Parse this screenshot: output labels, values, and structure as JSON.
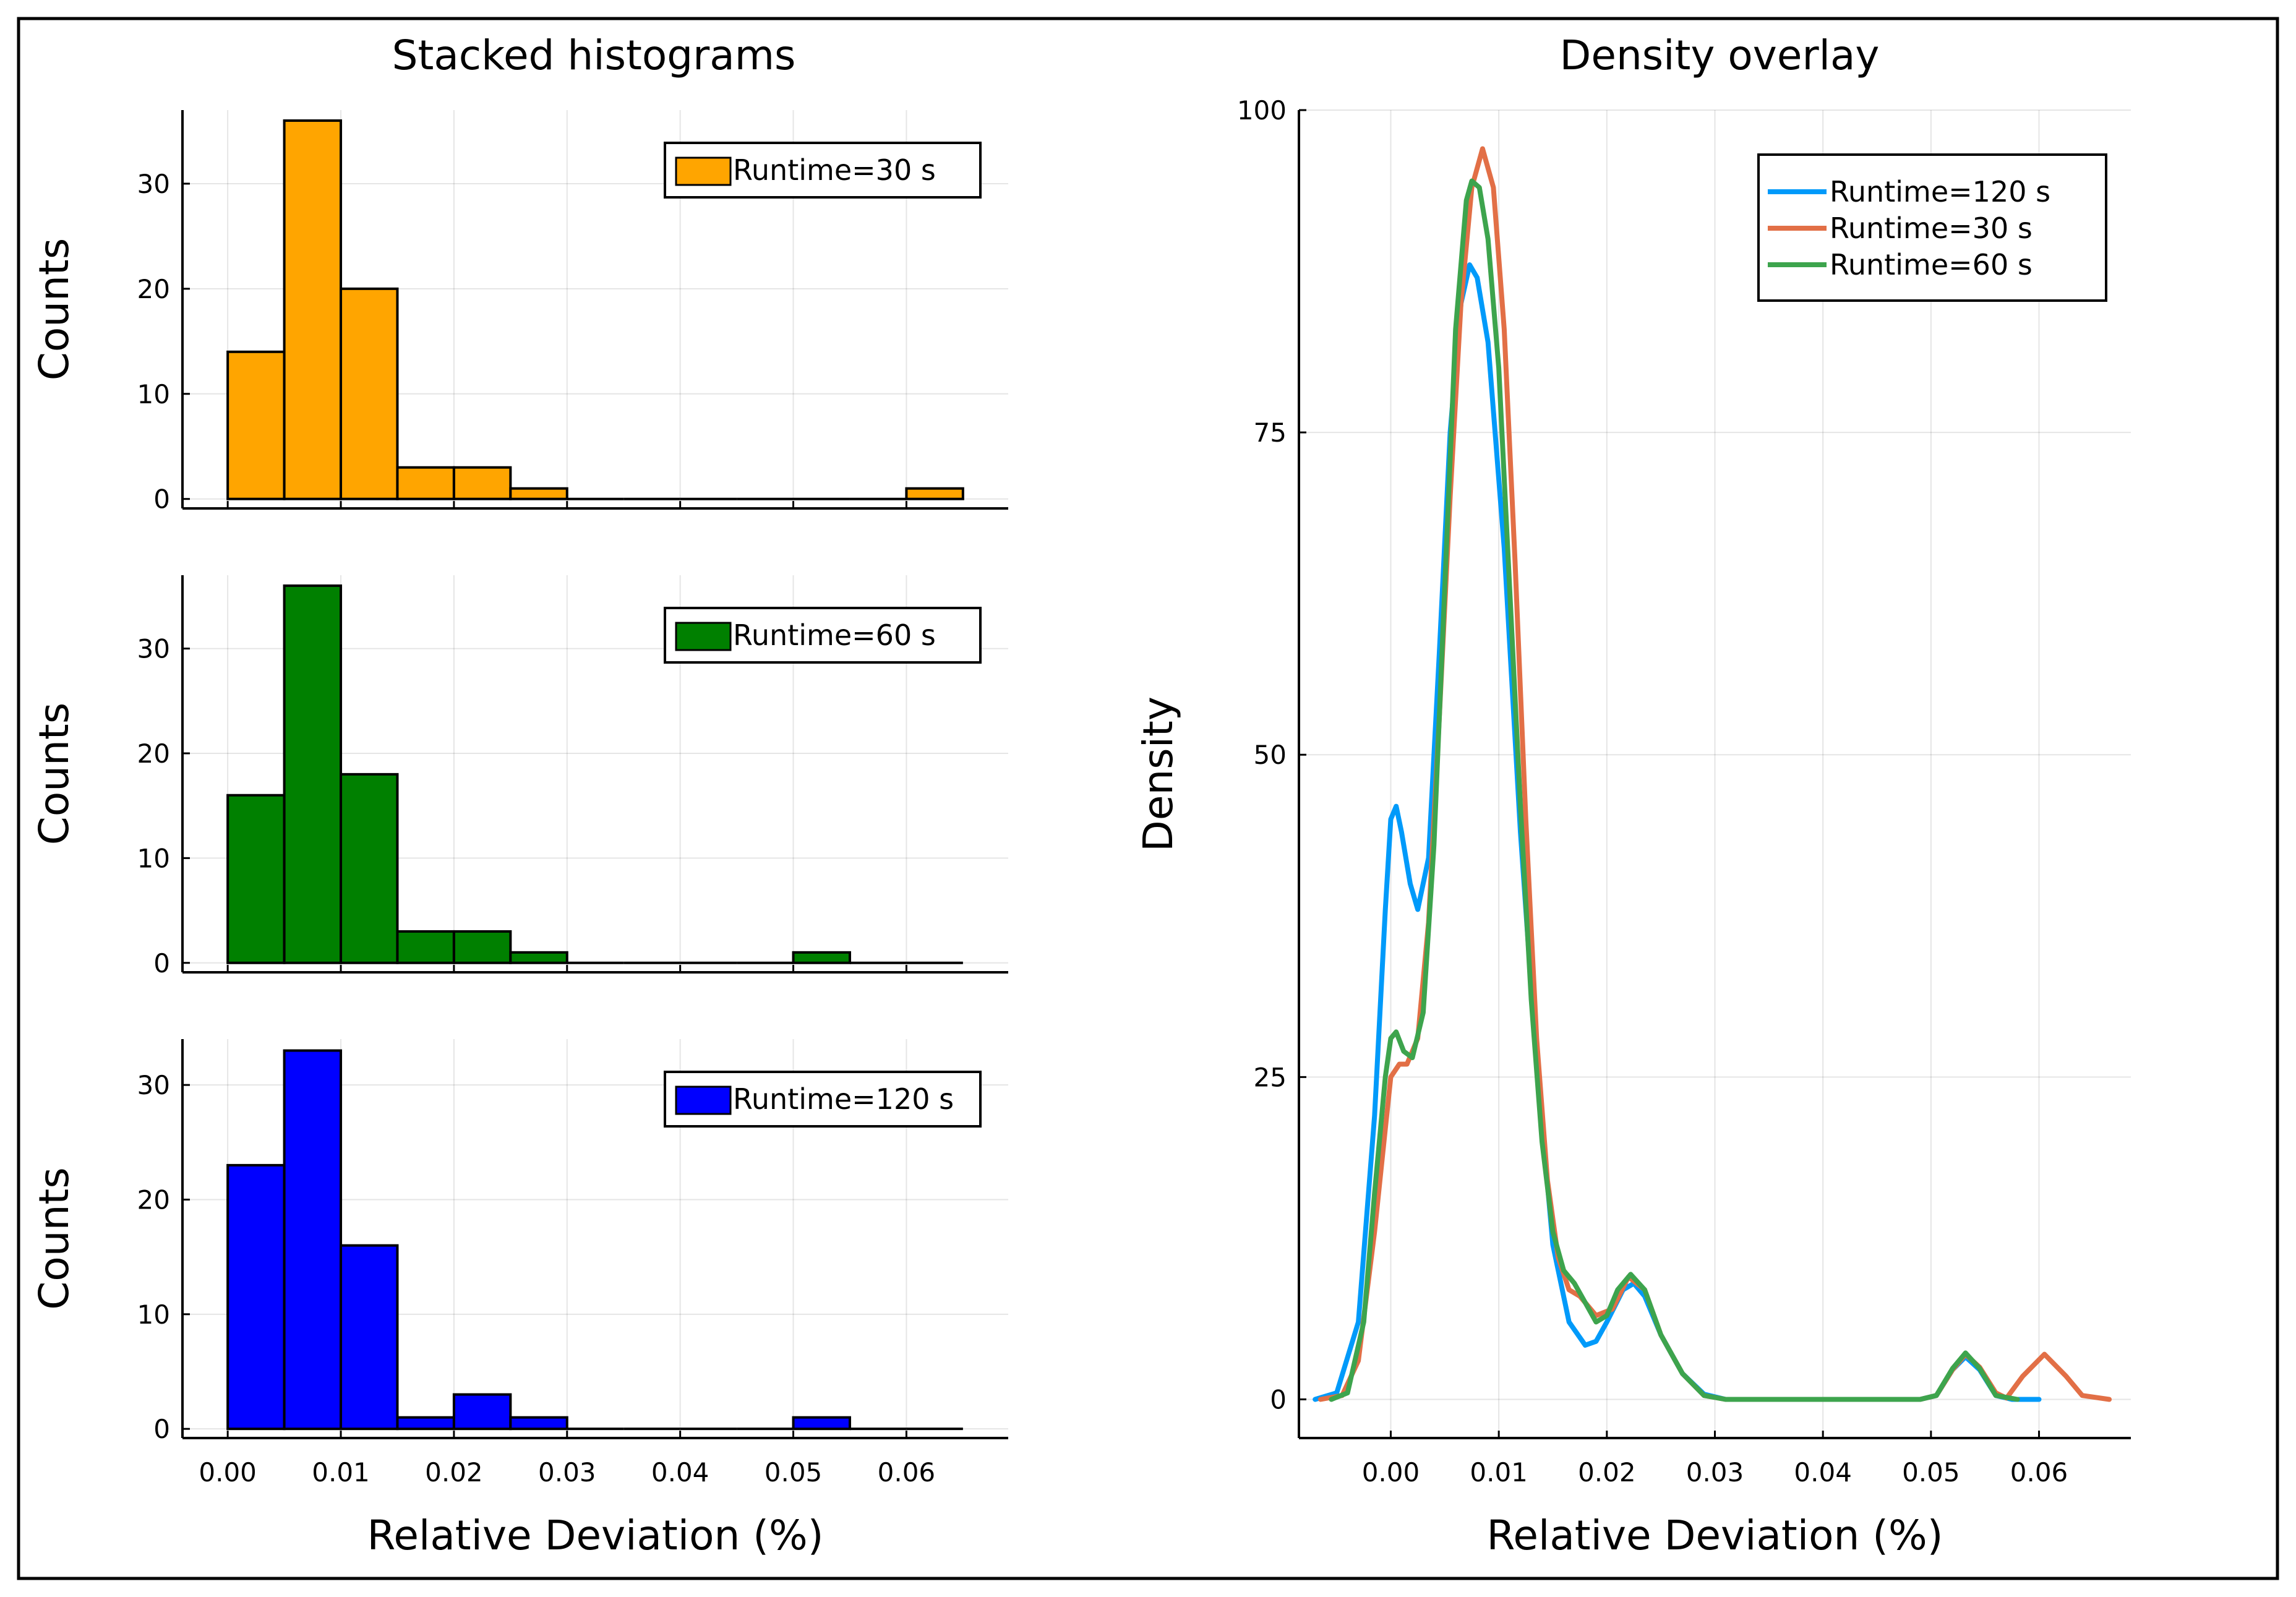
{
  "figure": {
    "panels": {
      "stacked": {
        "title": "Stacked histograms"
      },
      "density": {
        "title": "Density overlay"
      }
    }
  },
  "chart_data": [
    {
      "type": "bar",
      "title": "Stacked histograms",
      "xlabel": "Relative Deviation (%)",
      "ylabel": "Counts",
      "bin_edges": [
        0.0,
        0.005,
        0.01,
        0.015,
        0.02,
        0.025,
        0.03,
        0.035,
        0.04,
        0.045,
        0.05,
        0.055,
        0.06,
        0.065
      ],
      "xlim": [
        -0.004,
        0.069
      ],
      "xticks": [
        0.0,
        0.01,
        0.02,
        0.03,
        0.04,
        0.05,
        0.06
      ],
      "xtick_labels": [
        "0.00",
        "0.01",
        "0.02",
        "0.03",
        "0.04",
        "0.05",
        "0.06"
      ],
      "grid": true,
      "legend_position": "top-right",
      "series": [
        {
          "name": "Runtime=30 s",
          "color": "#FFA500",
          "counts": [
            14,
            36,
            20,
            3,
            3,
            1,
            0,
            0,
            0,
            0,
            0,
            0,
            1
          ],
          "ylim": [
            -0.9,
            37
          ],
          "yticks": [
            0,
            10,
            20,
            30
          ]
        },
        {
          "name": "Runtime=60 s",
          "color": "#008000",
          "counts": [
            16,
            36,
            18,
            3,
            3,
            1,
            0,
            0,
            0,
            0,
            1,
            0,
            0
          ],
          "ylim": [
            -0.9,
            37
          ],
          "yticks": [
            0,
            10,
            20,
            30
          ]
        },
        {
          "name": "Runtime=120 s",
          "color": "#0000FF",
          "counts": [
            23,
            33,
            16,
            1,
            3,
            1,
            0,
            0,
            0,
            0,
            1,
            0,
            0
          ],
          "ylim": [
            -0.8,
            34
          ],
          "yticks": [
            0,
            10,
            20,
            30
          ]
        }
      ]
    },
    {
      "type": "line",
      "title": "Density overlay",
      "xlabel": "Relative Deviation (%)",
      "ylabel": "Density",
      "xlim": [
        -0.0085,
        0.0685
      ],
      "ylim": [
        -3,
        100
      ],
      "xticks": [
        0.0,
        0.01,
        0.02,
        0.03,
        0.04,
        0.05,
        0.06
      ],
      "xtick_labels": [
        "0.00",
        "0.01",
        "0.02",
        "0.03",
        "0.04",
        "0.05",
        "0.06"
      ],
      "yticks": [
        0,
        25,
        50,
        75,
        100
      ],
      "grid": true,
      "legend_position": "top-right",
      "series": [
        {
          "name": "Runtime=120 s",
          "color": "#009AFA",
          "points": [
            [
              -0.007,
              0
            ],
            [
              -0.005,
              0.5
            ],
            [
              -0.003,
              6
            ],
            [
              -0.0015,
              22
            ],
            [
              -0.0005,
              38
            ],
            [
              0.0,
              45
            ],
            [
              0.0005,
              46
            ],
            [
              0.001,
              44
            ],
            [
              0.0018,
              40
            ],
            [
              0.0025,
              38
            ],
            [
              0.0035,
              42
            ],
            [
              0.0045,
              58
            ],
            [
              0.0055,
              75
            ],
            [
              0.0065,
              85
            ],
            [
              0.0073,
              88
            ],
            [
              0.008,
              87
            ],
            [
              0.009,
              82
            ],
            [
              0.0105,
              66
            ],
            [
              0.012,
              44
            ],
            [
              0.0135,
              26
            ],
            [
              0.015,
              12
            ],
            [
              0.0165,
              6
            ],
            [
              0.018,
              4.2
            ],
            [
              0.019,
              4.5
            ],
            [
              0.02,
              6
            ],
            [
              0.0215,
              8.5
            ],
            [
              0.0225,
              9
            ],
            [
              0.0235,
              8
            ],
            [
              0.025,
              5
            ],
            [
              0.027,
              2
            ],
            [
              0.029,
              0.4
            ],
            [
              0.031,
              0
            ],
            [
              0.049,
              0
            ],
            [
              0.0505,
              0.3
            ],
            [
              0.052,
              2.3
            ],
            [
              0.0532,
              3.3
            ],
            [
              0.0545,
              2.3
            ],
            [
              0.056,
              0.3
            ],
            [
              0.0575,
              0
            ],
            [
              0.06,
              0
            ]
          ]
        },
        {
          "name": "Runtime=30 s",
          "color": "#E26F46",
          "points": [
            [
              -0.0065,
              0
            ],
            [
              -0.0045,
              0.3
            ],
            [
              -0.003,
              3
            ],
            [
              -0.0015,
              13
            ],
            [
              -0.0005,
              21
            ],
            [
              0.0,
              25
            ],
            [
              0.0008,
              26
            ],
            [
              0.0015,
              26
            ],
            [
              0.0025,
              28
            ],
            [
              0.0035,
              37
            ],
            [
              0.0045,
              53
            ],
            [
              0.0055,
              70
            ],
            [
              0.0065,
              85
            ],
            [
              0.0075,
              94
            ],
            [
              0.0085,
              97
            ],
            [
              0.0095,
              94
            ],
            [
              0.0105,
              83
            ],
            [
              0.0115,
              65
            ],
            [
              0.0125,
              45
            ],
            [
              0.0135,
              28
            ],
            [
              0.0145,
              17
            ],
            [
              0.0155,
              11
            ],
            [
              0.0165,
              8.5
            ],
            [
              0.0175,
              8
            ],
            [
              0.019,
              6.5
            ],
            [
              0.0205,
              7
            ],
            [
              0.022,
              9.5
            ],
            [
              0.0235,
              8.5
            ],
            [
              0.025,
              5
            ],
            [
              0.027,
              2
            ],
            [
              0.029,
              0.3
            ],
            [
              0.031,
              0
            ],
            [
              0.049,
              0
            ],
            [
              0.0505,
              0.3
            ],
            [
              0.052,
              2.3
            ],
            [
              0.0532,
              3.5
            ],
            [
              0.0545,
              2.5
            ],
            [
              0.056,
              0.5
            ],
            [
              0.057,
              0.1
            ],
            [
              0.0585,
              1.8
            ],
            [
              0.0605,
              3.5
            ],
            [
              0.0625,
              1.8
            ],
            [
              0.064,
              0.3
            ],
            [
              0.0665,
              0
            ]
          ]
        },
        {
          "name": "Runtime=60 s",
          "color": "#3DA44D",
          "points": [
            [
              -0.0055,
              0
            ],
            [
              -0.004,
              0.5
            ],
            [
              -0.0025,
              6
            ],
            [
              -0.0015,
              16
            ],
            [
              -0.0005,
              25
            ],
            [
              0.0,
              28
            ],
            [
              0.0005,
              28.5
            ],
            [
              0.0012,
              27
            ],
            [
              0.002,
              26.5
            ],
            [
              0.003,
              30
            ],
            [
              0.004,
              43
            ],
            [
              0.005,
              63
            ],
            [
              0.006,
              83
            ],
            [
              0.007,
              93
            ],
            [
              0.0075,
              94.5
            ],
            [
              0.0082,
              94
            ],
            [
              0.009,
              90
            ],
            [
              0.01,
              80
            ],
            [
              0.011,
              63
            ],
            [
              0.012,
              46
            ],
            [
              0.013,
              31
            ],
            [
              0.014,
              20
            ],
            [
              0.015,
              13
            ],
            [
              0.016,
              10
            ],
            [
              0.017,
              9
            ],
            [
              0.018,
              7.5
            ],
            [
              0.019,
              6
            ],
            [
              0.02,
              6.5
            ],
            [
              0.021,
              8.5
            ],
            [
              0.0222,
              9.7
            ],
            [
              0.0235,
              8.5
            ],
            [
              0.025,
              5
            ],
            [
              0.027,
              2
            ],
            [
              0.029,
              0.3
            ],
            [
              0.031,
              0
            ],
            [
              0.049,
              0
            ],
            [
              0.0505,
              0.3
            ],
            [
              0.052,
              2.4
            ],
            [
              0.0532,
              3.6
            ],
            [
              0.0545,
              2.4
            ],
            [
              0.056,
              0.3
            ],
            [
              0.058,
              0
            ]
          ]
        }
      ]
    }
  ]
}
